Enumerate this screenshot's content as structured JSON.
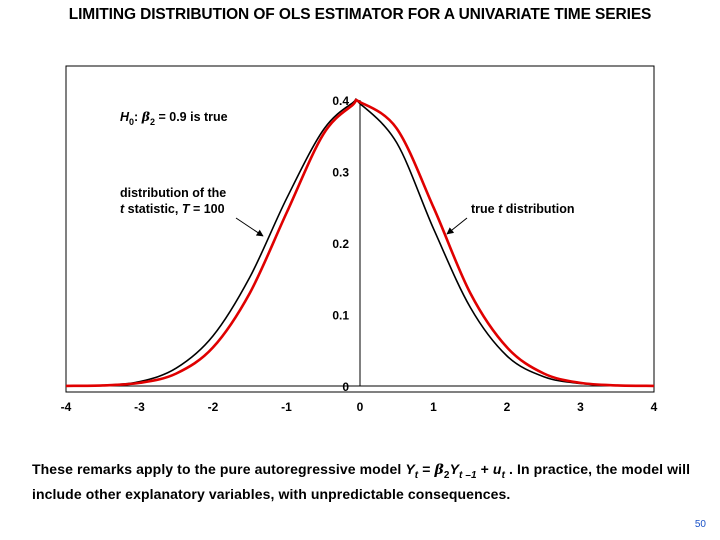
{
  "slide": {
    "title": "LIMITING DISTRIBUTION OF OLS ESTIMATOR FOR A UNIVARIATE TIME SERIES",
    "page_number": "50",
    "remarks": {
      "part1": "These remarks apply to the pure autoregressive model ",
      "model": {
        "Y": "Y",
        "t": "t",
        "eq": " = ",
        "beta": "β",
        "two": "2",
        "Y2": "Y",
        "tminus1": "t –1",
        "plus": " + ",
        "u": "u",
        "t2": "t"
      },
      "part2": " .  In practice, the model will include other explanatory variables, with unpredictable consequences."
    }
  },
  "chart_data": {
    "type": "line",
    "title": "",
    "xlim": [
      -4,
      4
    ],
    "ylim": [
      0,
      0.4
    ],
    "x_ticks": [
      "-4",
      "-3",
      "-2",
      "-1",
      "0",
      "1",
      "2",
      "3",
      "4"
    ],
    "y_ticks": [
      "0",
      "0.1",
      "0.2",
      "0.3",
      "0.4"
    ],
    "x": [
      -4,
      -3.5,
      -3,
      -2.5,
      -2,
      -1.5,
      -1,
      -0.5,
      -0.1,
      0,
      0.5,
      1,
      1.5,
      2,
      2.5,
      3,
      3.5,
      4
    ],
    "series": [
      {
        "name": "distribution of the t statistic, T = 100",
        "color": "#000000",
        "values": [
          0.0002,
          0.001,
          0.006,
          0.025,
          0.07,
          0.152,
          0.262,
          0.358,
          0.396,
          0.395,
          0.34,
          0.22,
          0.11,
          0.042,
          0.013,
          0.0035,
          0.0009,
          0.0002
        ]
      },
      {
        "name": "true t distribution",
        "color": "#e00000",
        "values": [
          0.0001,
          0.0008,
          0.0044,
          0.0175,
          0.054,
          0.13,
          0.242,
          0.352,
          0.393,
          0.397,
          0.36,
          0.25,
          0.13,
          0.054,
          0.0175,
          0.0044,
          0.0008,
          0.0001
        ]
      }
    ],
    "annotations": {
      "hypothesis": {
        "H": "H",
        "zero": "0",
        "colon": ": ",
        "beta": "β",
        "two": "2",
        "rest": " = 0.9 is true"
      },
      "black_label": {
        "line1": "distribution of the",
        "t": "t",
        "line2_rest": " statistic, ",
        "T": "T",
        "line2_end": " = 100"
      },
      "red_label": {
        "pre": "true ",
        "t": "t",
        "post": " distribution"
      }
    }
  }
}
